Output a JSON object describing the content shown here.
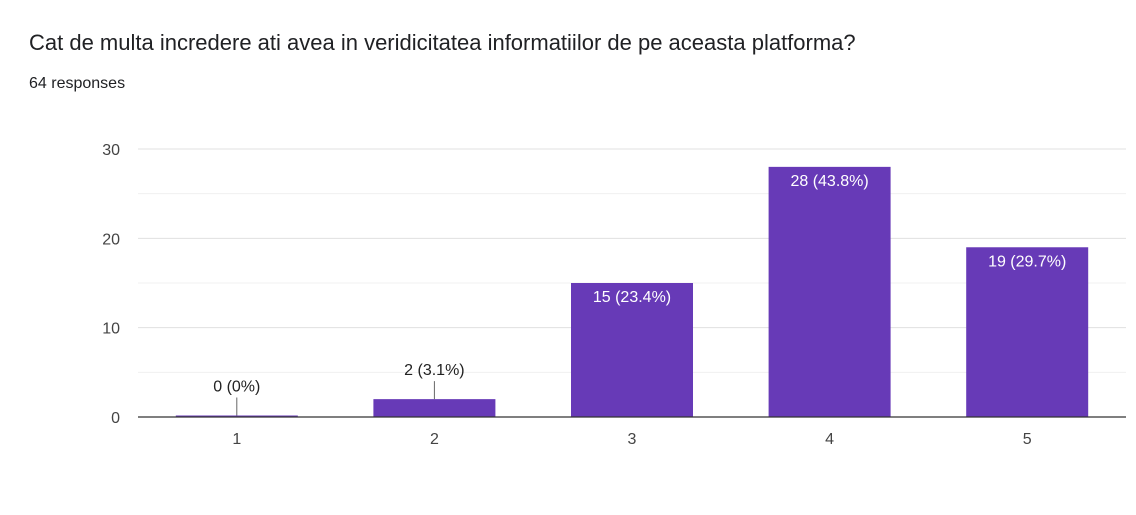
{
  "question": {
    "title": "Cat de multa incredere ati avea in veridicitatea informatiilor de pe aceasta platforma?",
    "responses": "64 responses"
  },
  "colors": {
    "bar": "#673ab7",
    "text": "#202124",
    "grid": "#e6e6e6",
    "axis": "#333333"
  },
  "chart_data": {
    "type": "bar",
    "categories": [
      "1",
      "2",
      "3",
      "4",
      "5"
    ],
    "values": [
      0,
      2,
      15,
      28,
      19
    ],
    "data_labels": [
      "0 (0%)",
      "2 (3.1%)",
      "15 (23.4%)",
      "28 (43.8%)",
      "19 (29.7%)"
    ],
    "yticks": [
      0,
      10,
      20,
      30
    ],
    "ylim": [
      0,
      30
    ],
    "grid": true
  }
}
